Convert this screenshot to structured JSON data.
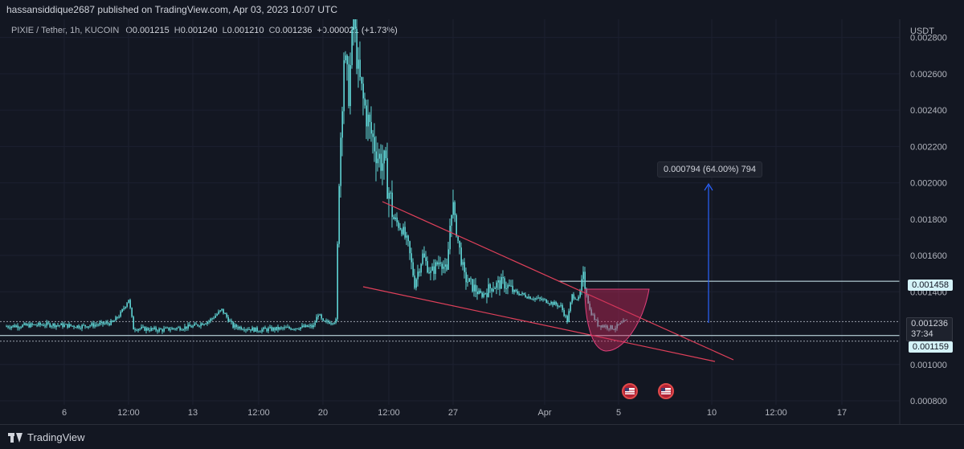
{
  "header": {
    "publisher_line": "hassansiddique2687 published on TradingView.com, Apr 03, 2023 10:07 UTC"
  },
  "legend": {
    "symbol": "PIXIE / Tether, 1h, KUCOIN",
    "open_label": "O",
    "open": "0.001215",
    "high_label": "H",
    "high": "0.001240",
    "low_label": "L",
    "low": "0.001210",
    "close_label": "C",
    "close": "0.001236",
    "change": "+0.000021 (+1.73%)"
  },
  "price_axis": {
    "currency": "USDT",
    "ticks": [
      "0.002800",
      "0.002600",
      "0.002400",
      "0.002200",
      "0.002000",
      "0.001800",
      "0.001600",
      "0.001400",
      "0.001000",
      "0.000800"
    ]
  },
  "time_axis": {
    "ticks": [
      "6",
      "12:00",
      "13",
      "12:00",
      "20",
      "12:00",
      "27",
      "Apr",
      "5",
      "10",
      "12:00",
      "17"
    ]
  },
  "annotations": {
    "measure_label": "0.000794 (64.00%) 794",
    "resistance_price": "0.001458",
    "last_price": "0.001236",
    "countdown": "37:34",
    "support_price": "0.001159"
  },
  "footer": {
    "brand": "TradingView"
  },
  "colors": {
    "background": "#131722",
    "candle": "#5fd4d4",
    "trendline": "#e0405a",
    "measure": "#2962ff",
    "tag_bg": "#d4f2f8",
    "tag_text": "#131722"
  },
  "chart_data": {
    "type": "line",
    "x": [
      "6",
      "12:00",
      "13",
      "12:00",
      "20",
      "12:00",
      "27",
      "Apr",
      "5"
    ],
    "series": [
      {
        "values": [
          0.00121,
          0.00124,
          0.00119,
          0.0012,
          0.00121,
          0.00175,
          0.00145,
          0.00142,
          0.00123
        ]
      }
    ],
    "ylim": [
      0.0008,
      0.0029
    ],
    "ylabel": "USDT"
  }
}
